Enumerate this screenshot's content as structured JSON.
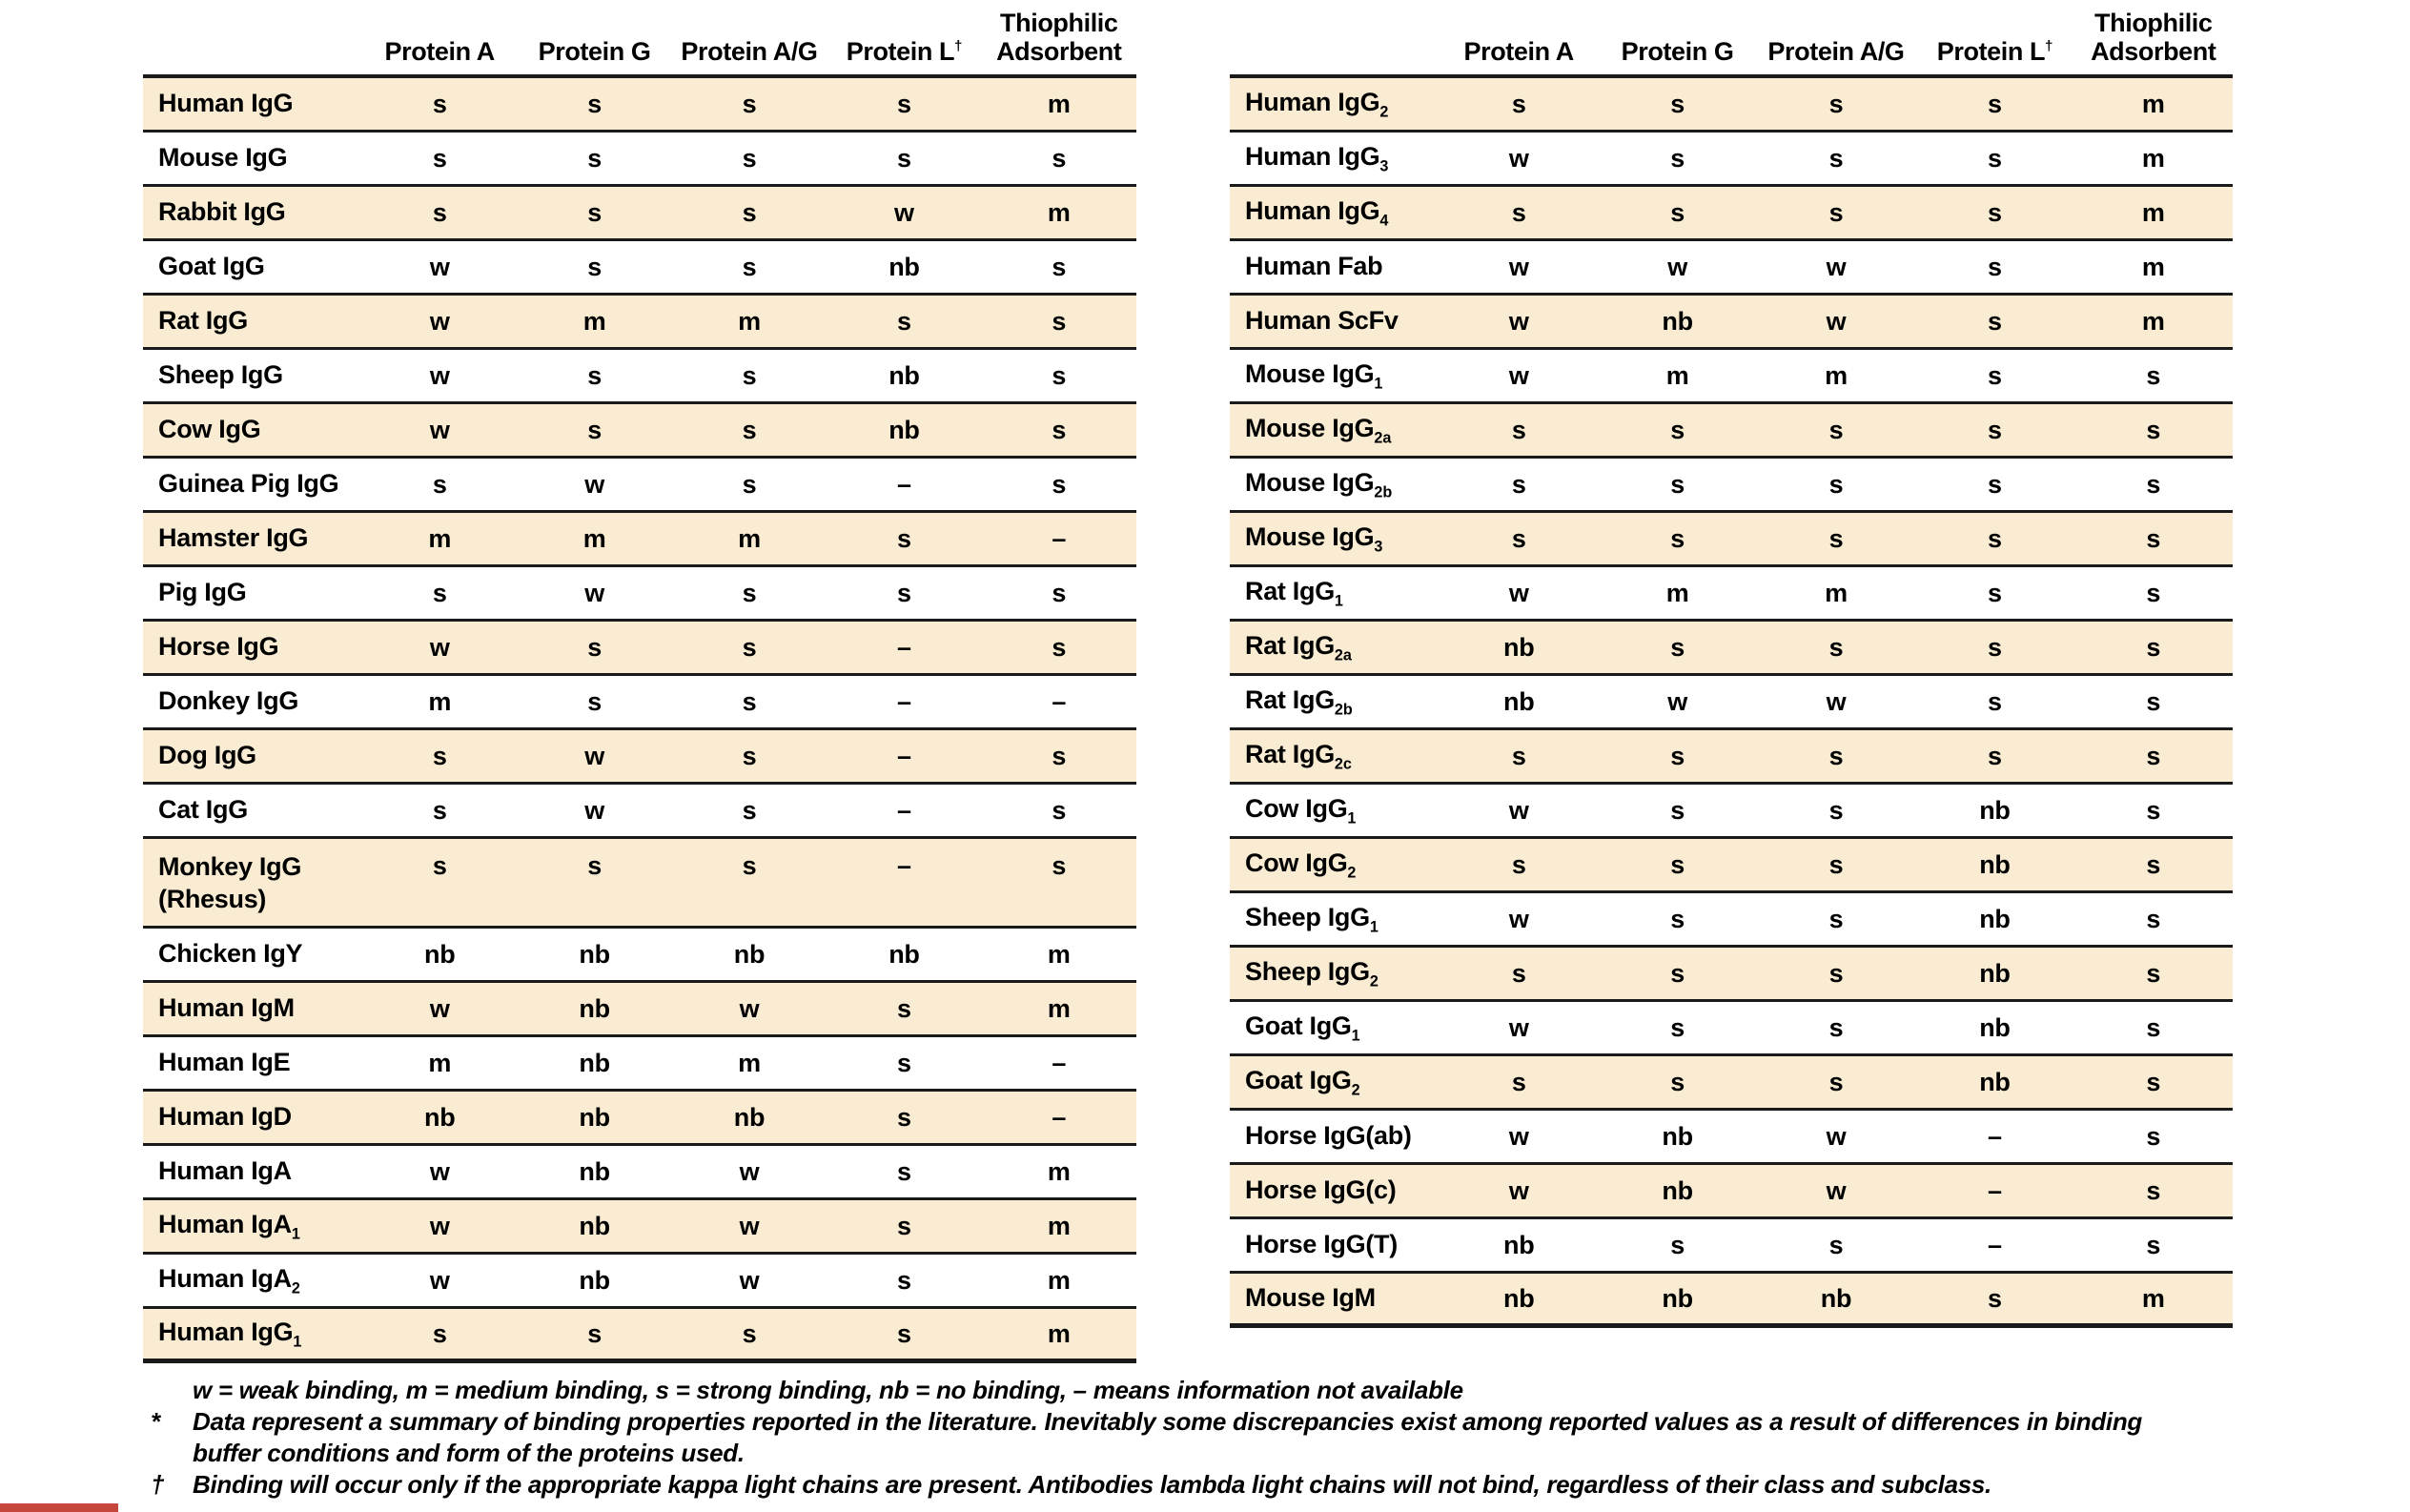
{
  "colors": {
    "row_shade": "#f9ecd3",
    "rule": "#1a1a1a",
    "accent_red": "#c5463c",
    "background": "#ffffff",
    "text": "#000000"
  },
  "tables": [
    {
      "id": "left",
      "columns": [
        {
          "label": "Protein A"
        },
        {
          "label": "Protein G"
        },
        {
          "label": "Protein A/G"
        },
        {
          "label": "Protein L",
          "sup": "†"
        },
        {
          "label": "Thiophilic Adsorbent"
        }
      ],
      "rows": [
        {
          "label": "Human IgG",
          "values": [
            "s",
            "s",
            "s",
            "s",
            "m"
          ]
        },
        {
          "label": "Mouse IgG",
          "values": [
            "s",
            "s",
            "s",
            "s",
            "s"
          ]
        },
        {
          "label": "Rabbit IgG",
          "values": [
            "s",
            "s",
            "s",
            "w",
            "m"
          ]
        },
        {
          "label": "Goat IgG",
          "values": [
            "w",
            "s",
            "s",
            "nb",
            "s"
          ]
        },
        {
          "label": "Rat IgG",
          "values": [
            "w",
            "m",
            "m",
            "s",
            "s"
          ]
        },
        {
          "label": "Sheep IgG",
          "values": [
            "w",
            "s",
            "s",
            "nb",
            "s"
          ]
        },
        {
          "label": "Cow IgG",
          "values": [
            "w",
            "s",
            "s",
            "nb",
            "s"
          ]
        },
        {
          "label": "Guinea Pig IgG",
          "values": [
            "s",
            "w",
            "s",
            "–",
            "s"
          ]
        },
        {
          "label": "Hamster IgG",
          "values": [
            "m",
            "m",
            "m",
            "s",
            "–"
          ]
        },
        {
          "label": "Pig IgG",
          "values": [
            "s",
            "w",
            "s",
            "s",
            "s"
          ]
        },
        {
          "label": "Horse IgG",
          "values": [
            "w",
            "s",
            "s",
            "–",
            "s"
          ]
        },
        {
          "label": "Donkey IgG",
          "values": [
            "m",
            "s",
            "s",
            "–",
            "–"
          ]
        },
        {
          "label": "Dog IgG",
          "values": [
            "s",
            "w",
            "s",
            "–",
            "s"
          ]
        },
        {
          "label": "Cat IgG",
          "values": [
            "s",
            "w",
            "s",
            "–",
            "s"
          ]
        },
        {
          "label": "Monkey IgG",
          "line2": "(Rhesus)",
          "values": [
            "s",
            "s",
            "s",
            "–",
            "s"
          ]
        },
        {
          "label": "Chicken IgY",
          "values": [
            "nb",
            "nb",
            "nb",
            "nb",
            "m"
          ]
        },
        {
          "label": "Human IgM",
          "values": [
            "w",
            "nb",
            "w",
            "s",
            "m"
          ]
        },
        {
          "label": "Human IgE",
          "values": [
            "m",
            "nb",
            "m",
            "s",
            "–"
          ]
        },
        {
          "label": "Human IgD",
          "values": [
            "nb",
            "nb",
            "nb",
            "s",
            "–"
          ]
        },
        {
          "label": "Human IgA",
          "values": [
            "w",
            "nb",
            "w",
            "s",
            "m"
          ]
        },
        {
          "label": "Human IgA",
          "sub": "1",
          "values": [
            "w",
            "nb",
            "w",
            "s",
            "m"
          ]
        },
        {
          "label": "Human IgA",
          "sub": "2",
          "values": [
            "w",
            "nb",
            "w",
            "s",
            "m"
          ]
        },
        {
          "label": "Human IgG",
          "sub": "1",
          "values": [
            "s",
            "s",
            "s",
            "s",
            "m"
          ]
        }
      ]
    },
    {
      "id": "right",
      "columns": [
        {
          "label": "Protein A"
        },
        {
          "label": "Protein G"
        },
        {
          "label": "Protein A/G"
        },
        {
          "label": "Protein L",
          "sup": "†"
        },
        {
          "label": "Thiophilic Adsorbent"
        }
      ],
      "rows": [
        {
          "label": "Human IgG",
          "sub": "2",
          "values": [
            "s",
            "s",
            "s",
            "s",
            "m"
          ]
        },
        {
          "label": "Human IgG",
          "sub": "3",
          "values": [
            "w",
            "s",
            "s",
            "s",
            "m"
          ]
        },
        {
          "label": "Human IgG",
          "sub": "4",
          "values": [
            "s",
            "s",
            "s",
            "s",
            "m"
          ]
        },
        {
          "label": "Human Fab",
          "values": [
            "w",
            "w",
            "w",
            "s",
            "m"
          ]
        },
        {
          "label": "Human ScFv",
          "values": [
            "w",
            "nb",
            "w",
            "s",
            "m"
          ]
        },
        {
          "label": "Mouse IgG",
          "sub": "1",
          "values": [
            "w",
            "m",
            "m",
            "s",
            "s"
          ]
        },
        {
          "label": "Mouse IgG",
          "sub": "2a",
          "values": [
            "s",
            "s",
            "s",
            "s",
            "s"
          ]
        },
        {
          "label": "Mouse IgG",
          "sub": "2b",
          "values": [
            "s",
            "s",
            "s",
            "s",
            "s"
          ]
        },
        {
          "label": "Mouse IgG",
          "sub": "3",
          "values": [
            "s",
            "s",
            "s",
            "s",
            "s"
          ]
        },
        {
          "label": "Rat IgG",
          "sub": "1",
          "values": [
            "w",
            "m",
            "m",
            "s",
            "s"
          ]
        },
        {
          "label": "Rat IgG",
          "sub": "2a",
          "values": [
            "nb",
            "s",
            "s",
            "s",
            "s"
          ]
        },
        {
          "label": "Rat IgG",
          "sub": "2b",
          "values": [
            "nb",
            "w",
            "w",
            "s",
            "s"
          ]
        },
        {
          "label": "Rat IgG",
          "sub": "2c",
          "values": [
            "s",
            "s",
            "s",
            "s",
            "s"
          ]
        },
        {
          "label": "Cow IgG",
          "sub": "1",
          "values": [
            "w",
            "s",
            "s",
            "nb",
            "s"
          ]
        },
        {
          "label": "Cow IgG",
          "sub": "2",
          "values": [
            "s",
            "s",
            "s",
            "nb",
            "s"
          ]
        },
        {
          "label": "Sheep IgG",
          "sub": "1",
          "values": [
            "w",
            "s",
            "s",
            "nb",
            "s"
          ]
        },
        {
          "label": "Sheep IgG",
          "sub": "2",
          "values": [
            "s",
            "s",
            "s",
            "nb",
            "s"
          ]
        },
        {
          "label": "Goat IgG",
          "sub": "1",
          "values": [
            "w",
            "s",
            "s",
            "nb",
            "s"
          ]
        },
        {
          "label": "Goat IgG",
          "sub": "2",
          "values": [
            "s",
            "s",
            "s",
            "nb",
            "s"
          ]
        },
        {
          "label": "Horse IgG(ab)",
          "values": [
            "w",
            "nb",
            "w",
            "–",
            "s"
          ]
        },
        {
          "label": "Horse IgG(c)",
          "values": [
            "w",
            "nb",
            "w",
            "–",
            "s"
          ]
        },
        {
          "label": "Horse IgG(T)",
          "values": [
            "nb",
            "s",
            "s",
            "–",
            "s"
          ]
        },
        {
          "label": "Mouse IgM",
          "values": [
            "nb",
            "nb",
            "nb",
            "s",
            "m"
          ]
        }
      ]
    }
  ],
  "footnotes": {
    "lines": [
      {
        "marker": "",
        "text": "w = weak binding, m = medium binding, s = strong binding, nb = no binding, – means information not available"
      },
      {
        "marker": "*",
        "text": "Data represent a summary of binding properties reported in the literature. Inevitably some discrepancies exist among reported values as a result of differences in binding"
      },
      {
        "marker": "",
        "text": "buffer conditions and form of the proteins used."
      },
      {
        "marker": "†",
        "text": "Binding will occur only if the appropriate kappa light chains are present. Antibodies lambda light chains will not bind, regardless of their class and subclass."
      }
    ]
  }
}
